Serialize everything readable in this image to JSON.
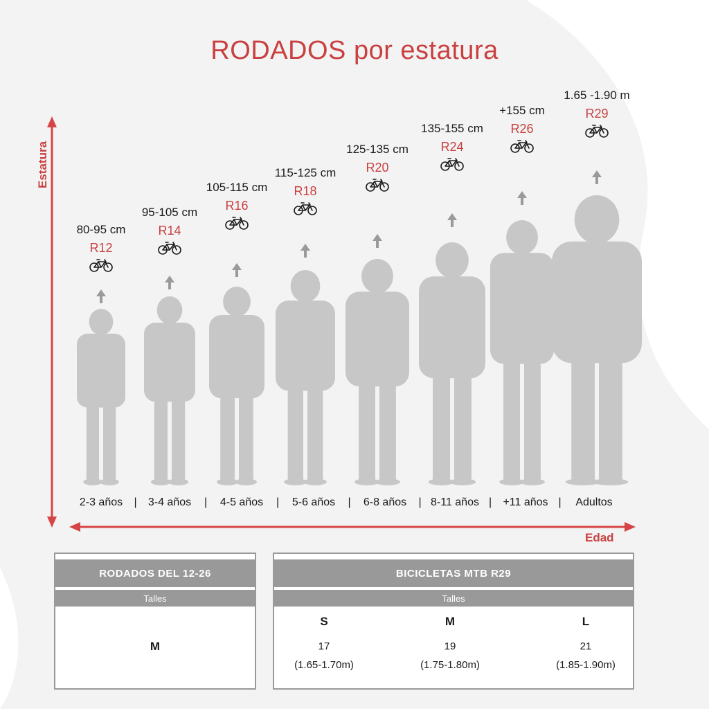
{
  "title": "RODADOS por estatura",
  "axis": {
    "y_label": "Estatura",
    "x_label": "Edad",
    "color": "#c94040"
  },
  "colors": {
    "accent": "#c94040",
    "silhouette": "#c7c7c7",
    "arrow": "#9a9a9a",
    "table_header": "#999999"
  },
  "groups": [
    {
      "height": "80-95 cm",
      "rodado": "R12",
      "age": "2-3 años"
    },
    {
      "height": "95-105 cm",
      "rodado": "R14",
      "age": "3-4 años"
    },
    {
      "height": "105-115 cm",
      "rodado": "R16",
      "age": "4-5 años"
    },
    {
      "height": "115-125 cm",
      "rodado": "R18",
      "age": "5-6 años"
    },
    {
      "height": "125-135 cm",
      "rodado": "R20",
      "age": "6-8 años"
    },
    {
      "height": "135-155 cm",
      "rodado": "R24",
      "age": "8-11 años"
    },
    {
      "height": "+155 cm",
      "rodado": "R26",
      "age": "+11 años"
    },
    {
      "height": "1.65 -1.90 m",
      "rodado": "R29",
      "age": "Adultos"
    }
  ],
  "age_separator": "|",
  "table_left": {
    "title": "RODADOS DEL 12-26",
    "subtitle": "Talles",
    "size": "M"
  },
  "table_right": {
    "title": "BICICLETAS MTB R29",
    "subtitle": "Talles",
    "sizes": [
      {
        "letter": "S",
        "frame": "17",
        "range": "(1.65-1.70m)"
      },
      {
        "letter": "M",
        "frame": "19",
        "range": "(1.75-1.80m)"
      },
      {
        "letter": "L",
        "frame": "21",
        "range": "(1.85-1.90m)"
      }
    ]
  }
}
